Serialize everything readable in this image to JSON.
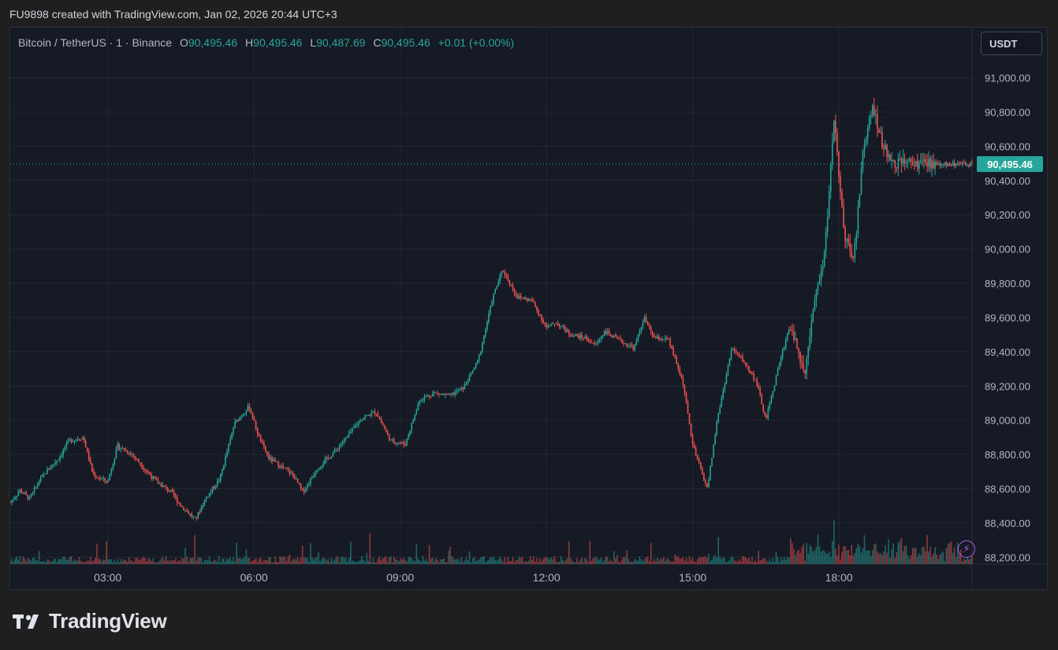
{
  "header": {
    "caption": "FU9898 created with TradingView.com, Jan 02, 2026 20:44 UTC+3"
  },
  "legend": {
    "symbol": "Bitcoin / TetherUS · 1 · Binance",
    "o_label": "O",
    "o_value": "90,495.46",
    "h_label": "H",
    "h_value": "90,495.46",
    "l_label": "L",
    "l_value": "90,487.69",
    "c_label": "C",
    "c_value": "90,495.46",
    "change": "+0.01 (+0.00%)"
  },
  "currency_button": "USDT",
  "last_price_label": "90,495.46",
  "brand": {
    "name": "TradingView",
    "logo_icon": "tradingview-logo-icon"
  },
  "colors": {
    "up": "#26a69a",
    "down": "#ef5350",
    "background": "#161a25",
    "grid": "#232733",
    "axis_text": "#b2b5be",
    "price_line": "#26a69a"
  },
  "chart_data": {
    "type": "line",
    "subtype": "candlestick",
    "symbol": "Bitcoin / TetherUS",
    "interval": "1",
    "exchange": "Binance",
    "x_tick_labels": [
      "03:00",
      "06:00",
      "09:00",
      "12:00",
      "15:00",
      "18:00"
    ],
    "x_tick_hours": [
      3,
      6,
      9,
      12,
      15,
      18
    ],
    "x_range_hours": [
      1.0,
      20.73
    ],
    "y_tick_labels": [
      "91,000.00",
      "90,800.00",
      "90,600.00",
      "90,400.00",
      "90,200.00",
      "90,000.00",
      "89,800.00",
      "89,600.00",
      "89,400.00",
      "89,200.00",
      "89,000.00",
      "88,800.00",
      "88,600.00",
      "88,400.00",
      "88,200.00"
    ],
    "y_tick_values": [
      91000,
      90800,
      90600,
      90400,
      90200,
      90000,
      89800,
      89600,
      89400,
      89200,
      89000,
      88800,
      88600,
      88400,
      88200
    ],
    "ylim": [
      88160,
      91090
    ],
    "last_price": 90495.46,
    "grid": true,
    "price_path": {
      "x_hours": [
        1.0,
        1.2,
        1.4,
        1.6,
        1.8,
        2.0,
        2.2,
        2.5,
        2.7,
        3.0,
        3.2,
        3.5,
        3.8,
        4.0,
        4.3,
        4.5,
        4.8,
        5.0,
        5.3,
        5.6,
        5.9,
        6.1,
        6.3,
        6.6,
        6.8,
        7.0,
        7.3,
        7.6,
        7.9,
        8.2,
        8.5,
        8.8,
        9.1,
        9.4,
        9.7,
        10.0,
        10.3,
        10.6,
        10.9,
        11.1,
        11.4,
        11.7,
        12.0,
        12.2,
        12.5,
        12.8,
        13.0,
        13.2,
        13.4,
        13.6,
        13.8,
        14.0,
        14.2,
        14.5,
        14.8,
        15.0,
        15.3,
        15.5,
        15.8,
        16.0,
        16.3,
        16.5,
        16.8,
        17.0,
        17.3,
        17.5,
        17.7,
        17.9,
        18.1,
        18.3,
        18.5,
        18.7,
        18.9,
        19.1,
        19.3,
        19.5,
        19.7,
        19.9,
        20.1,
        20.3,
        20.5,
        20.73
      ],
      "prices": [
        88520,
        88590,
        88540,
        88650,
        88720,
        88780,
        88880,
        88900,
        88680,
        88640,
        88850,
        88800,
        88700,
        88640,
        88580,
        88500,
        88420,
        88540,
        88660,
        88980,
        89080,
        88900,
        88780,
        88720,
        88680,
        88580,
        88720,
        88800,
        88900,
        89010,
        89050,
        88880,
        88860,
        89120,
        89160,
        89140,
        89190,
        89350,
        89720,
        89880,
        89720,
        89700,
        89540,
        89570,
        89500,
        89480,
        89440,
        89520,
        89480,
        89450,
        89420,
        89600,
        89480,
        89470,
        89220,
        88850,
        88600,
        89000,
        89420,
        89360,
        89230,
        89000,
        89360,
        89560,
        89280,
        89700,
        89960,
        90740,
        90100,
        89920,
        90600,
        90830,
        90600,
        90500,
        90510,
        90495,
        90495,
        90495,
        90495,
        90495,
        90495,
        90495
      ],
      "volume_note": "volume histogram shown along bottom in up/down colors"
    }
  }
}
